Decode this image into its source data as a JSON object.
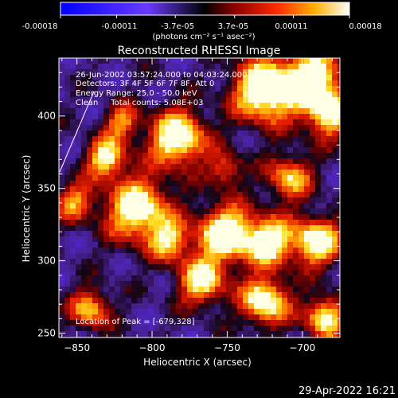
{
  "colorbar": {
    "tick_labels": [
      "-0.00018",
      "-0.00011",
      "-3.7e-05",
      "3.7e-05",
      "0.00011",
      "0.00018"
    ],
    "unit_label": "(photons cm⁻² s⁻¹ asec⁻²)",
    "range": [
      -0.00018,
      0.00018
    ]
  },
  "chart_data": {
    "type": "heatmap",
    "title": "Reconstructed RHESSI Image",
    "xlabel": "Heliocentric X (arcsec)",
    "ylabel": "Heliocentric Y (arcsec)",
    "xlim": [
      -862,
      -675
    ],
    "ylim": [
      247,
      440
    ],
    "x_ticks": [
      -850,
      -800,
      -750,
      -700
    ],
    "y_ticks": [
      250,
      300,
      350,
      400
    ],
    "annotations": [
      "26-Jun-2002 03:57:24.000 to 04:03:24.000",
      "Detectors: 3F 4F 5F 6F 7F 8F, Att 0",
      "Energy Range: 25.0 - 50.0 keV",
      "Clean     Total counts: 5.08E+03"
    ],
    "peak_label": "Location of Peak = [-679,328]",
    "peak": [
      -679,
      328
    ],
    "grid": false,
    "colormap": "blue-purple-black-red-orange-yellow-white"
  },
  "footer": {
    "timestamp": "29-Apr-2022 16:21"
  }
}
